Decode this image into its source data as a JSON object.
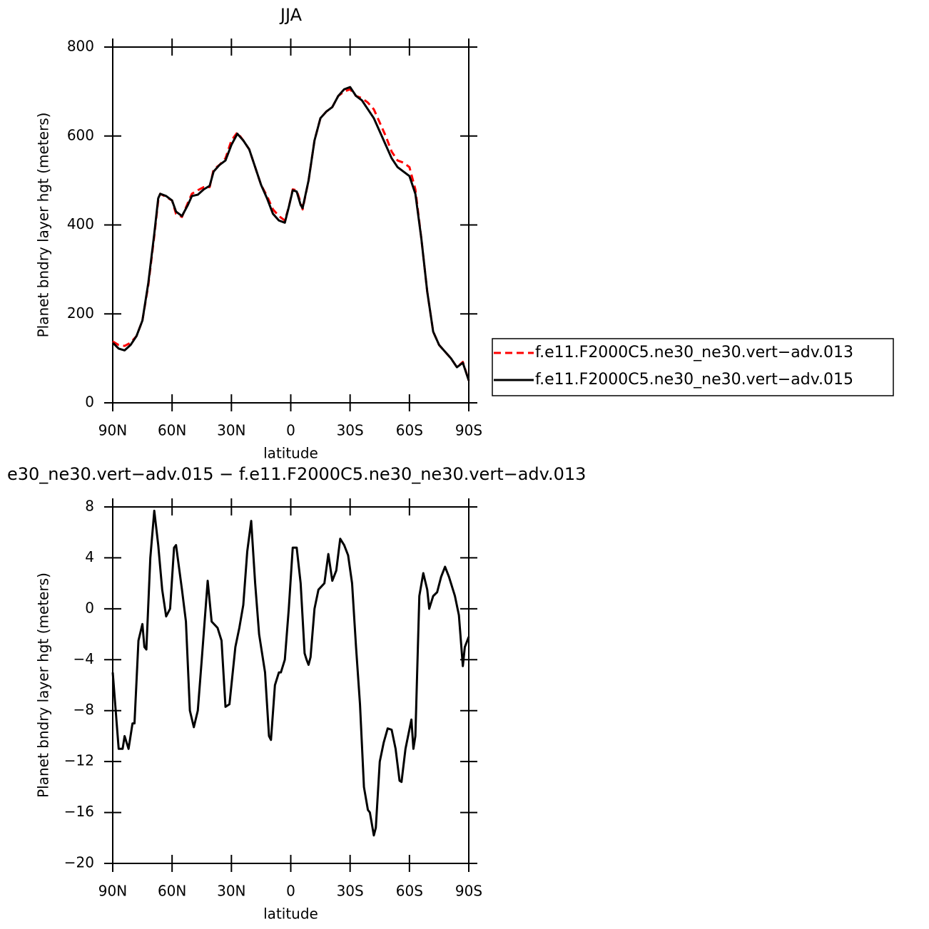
{
  "chart_data": [
    {
      "type": "line",
      "title": "JJA",
      "x_label": "latitude",
      "y_label": "Planet bndry layer hgt (meters)",
      "x": [
        90,
        87,
        84,
        81,
        78,
        75,
        72,
        69,
        67,
        66,
        63,
        60,
        58,
        55,
        52,
        50,
        47,
        44,
        41,
        39,
        36,
        33,
        30,
        27,
        24,
        21,
        18,
        15,
        12,
        9,
        6,
        3,
        1,
        -1,
        -3,
        -5,
        -6,
        -9,
        -12,
        -15,
        -18,
        -21,
        -24,
        -27,
        -30,
        -33,
        -36,
        -39,
        -42,
        -45,
        -48,
        -51,
        -54,
        -57,
        -60,
        -63,
        -66,
        -69,
        -72,
        -75,
        -78,
        -81,
        -84,
        -87,
        -90
      ],
      "series": [
        {
          "name": "f.e11.F2000C5.ne30_ne30.vert−adv.013",
          "color": "#ff0000",
          "line_style": "dashed",
          "values": [
            138,
            130,
            128,
            135,
            150,
            185,
            265,
            375,
            455,
            470,
            463,
            455,
            425,
            418,
            450,
            470,
            478,
            485,
            485,
            525,
            535,
            550,
            590,
            608,
            590,
            570,
            530,
            490,
            465,
            435,
            420,
            410,
            440,
            480,
            478,
            450,
            435,
            500,
            590,
            640,
            655,
            665,
            690,
            700,
            705,
            690,
            685,
            675,
            660,
            630,
            600,
            565,
            545,
            540,
            530,
            480,
            370,
            250,
            160,
            130,
            115,
            100,
            80,
            92,
            50
          ]
        },
        {
          "name": "f.e11.F2000C5.ne30_ne30.vert−adv.015",
          "color": "#000000",
          "line_style": "solid",
          "values": [
            135,
            122,
            118,
            130,
            150,
            185,
            270,
            380,
            460,
            470,
            465,
            455,
            430,
            420,
            445,
            465,
            468,
            480,
            488,
            520,
            535,
            545,
            580,
            605,
            590,
            570,
            530,
            490,
            460,
            425,
            410,
            405,
            440,
            478,
            475,
            445,
            438,
            500,
            590,
            640,
            655,
            665,
            690,
            705,
            710,
            690,
            680,
            660,
            640,
            610,
            580,
            550,
            530,
            520,
            510,
            470,
            370,
            250,
            160,
            130,
            115,
            100,
            80,
            90,
            50
          ]
        }
      ],
      "xlim": [
        90,
        -90
      ],
      "xticks": [
        {
          "value": 90,
          "label": "90N"
        },
        {
          "value": 60,
          "label": "60N"
        },
        {
          "value": 30,
          "label": "30N"
        },
        0,
        {
          "value": -30,
          "label": "30S"
        },
        {
          "value": -60,
          "label": "60S"
        },
        {
          "value": -90,
          "label": "90S"
        }
      ],
      "ylim": [
        0,
        800
      ],
      "yticks": [
        0,
        200,
        400,
        600,
        800
      ],
      "legend": "right"
    },
    {
      "type": "line",
      "title": "e30_ne30.vert−adv.015 − f.e11.F2000C5.ne30_ne30.vert−adv.013",
      "x_label": "latitude",
      "y_label": "Planet bndry layer hgt (meters)",
      "x": [
        90,
        88,
        87,
        85,
        84,
        82,
        80,
        79,
        77,
        75,
        74,
        73,
        71,
        69,
        67,
        65,
        63,
        61,
        59,
        58,
        55,
        53,
        51,
        49,
        47,
        45,
        42,
        40,
        37,
        35,
        33,
        31,
        28,
        26,
        24,
        22,
        20,
        18,
        16,
        13,
        11,
        10,
        8,
        6,
        5,
        3,
        1,
        -1,
        -3,
        -5,
        -7,
        -8,
        -9,
        -10,
        -12,
        -14,
        -17,
        -19,
        -21,
        -23,
        -25,
        -27,
        -29,
        -31,
        -33,
        -35,
        -37,
        -39,
        -40,
        -42,
        -43,
        -45,
        -47,
        -49,
        -51,
        -53,
        -55,
        -56,
        -58,
        -61,
        -62,
        -63,
        -65,
        -67,
        -69,
        -70,
        -72,
        -74,
        -76,
        -78,
        -80,
        -83,
        -85,
        -87,
        -88,
        -90
      ],
      "series": [
        {
          "color": "#000000",
          "line_style": "solid",
          "values": [
            -5,
            -9,
            -11,
            -11,
            -10,
            -11,
            -9,
            -9,
            -2.5,
            -1.2,
            -3,
            -3.2,
            4,
            7.7,
            5,
            1.5,
            -0.6,
            0,
            4.8,
            5,
            1.5,
            -1,
            -8,
            -9.3,
            -8,
            -4,
            2.2,
            -1,
            -1.5,
            -2.5,
            -7.7,
            -7.5,
            -3,
            -1.5,
            0.3,
            4.5,
            6.9,
            2,
            -2,
            -5,
            -10,
            -10.3,
            -6,
            -5,
            -5,
            -4,
            0,
            4.8,
            4.8,
            2,
            -3.5,
            -4,
            -4.4,
            -3.8,
            0,
            1.5,
            2,
            4.3,
            2.2,
            3,
            5.5,
            5,
            4.2,
            2,
            -3,
            -7.5,
            -14,
            -15.8,
            -16,
            -17.8,
            -17.2,
            -12,
            -10.5,
            -9.4,
            -9.5,
            -11,
            -13.5,
            -13.6,
            -11,
            -8.7,
            -11,
            -10,
            1,
            2.8,
            1.5,
            0,
            1,
            1.3,
            2.5,
            3.3,
            2.5,
            1,
            -0.5,
            -4.5,
            -3,
            -2.2
          ]
        }
      ],
      "xlim": [
        90,
        -90
      ],
      "xticks": [
        {
          "value": 90,
          "label": "90N"
        },
        {
          "value": 60,
          "label": "60N"
        },
        {
          "value": 30,
          "label": "30N"
        },
        0,
        {
          "value": -30,
          "label": "30S"
        },
        {
          "value": -60,
          "label": "60S"
        },
        {
          "value": -90,
          "label": "90S"
        }
      ],
      "ylim": [
        -20,
        8
      ],
      "yticks": [
        {
          "value": -20,
          "label": "−20"
        },
        {
          "value": -16,
          "label": "−16"
        },
        {
          "value": -12,
          "label": "−12"
        },
        {
          "value": -8,
          "label": "−8"
        },
        {
          "value": -4,
          "label": "−4"
        },
        0,
        4,
        8
      ]
    }
  ]
}
